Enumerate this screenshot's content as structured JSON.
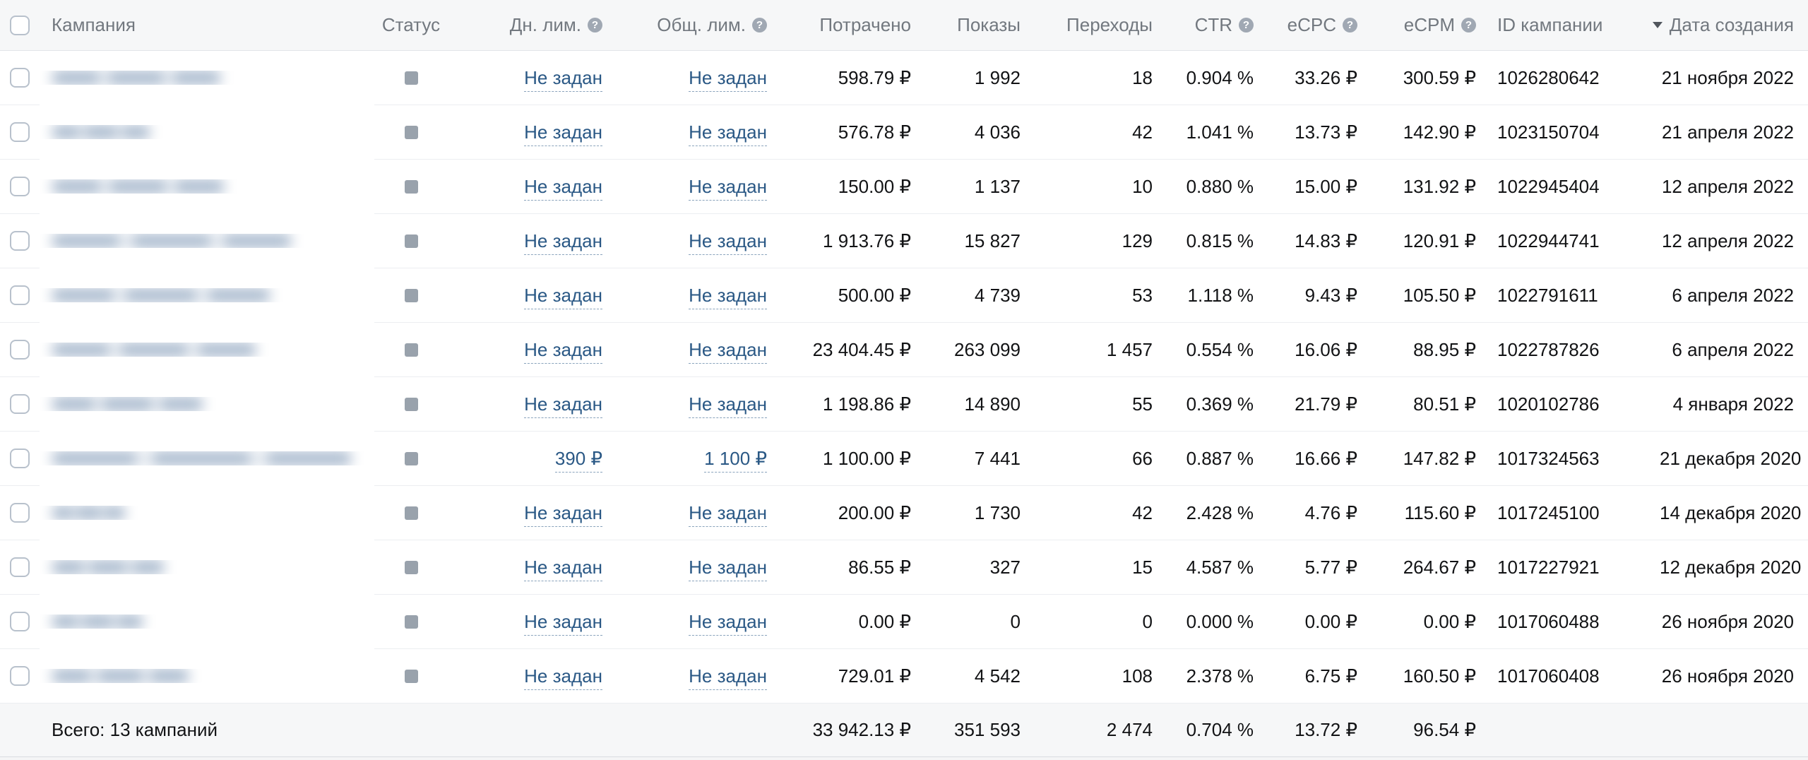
{
  "colors": {
    "link_blue": "#2a5885",
    "status_gray": "#99a2ac",
    "header_bg": "#f6f7f8",
    "footer_bg": "#f6f7f8",
    "header_text": "#72787f"
  },
  "icons": {
    "help_glyph": "?",
    "sort_direction": "desc"
  },
  "header": {
    "campaign": "Кампания",
    "status": "Статус",
    "daily_limit": "Дн. лим.",
    "total_limit": "Общ. лим.",
    "spent": "Потрачено",
    "impressions": "Показы",
    "clicks": "Переходы",
    "ctr": "CTR",
    "ecpc": "eCPC",
    "ecpm": "eCPM",
    "id": "ID кампании",
    "created": "Дата создания"
  },
  "rows": [
    {
      "name_redacted": true,
      "name_blur_width": 240,
      "status": "paused",
      "daily_limit": "Не задан",
      "total_limit": "Не задан",
      "spent": "598.79 ₽",
      "impressions": "1 992",
      "clicks": "18",
      "ctr": "0.904 %",
      "ecpc": "33.26 ₽",
      "ecpm": "300.59 ₽",
      "id": "1026280642",
      "created": "21 ноября 2022"
    },
    {
      "name_redacted": true,
      "name_blur_width": 140,
      "status": "paused",
      "daily_limit": "Не задан",
      "total_limit": "Не задан",
      "spent": "576.78 ₽",
      "impressions": "4 036",
      "clicks": "42",
      "ctr": "1.041 %",
      "ecpc": "13.73 ₽",
      "ecpm": "142.90 ₽",
      "id": "1023150704",
      "created": "21 апреля 2022"
    },
    {
      "name_redacted": true,
      "name_blur_width": 245,
      "status": "paused",
      "daily_limit": "Не задан",
      "total_limit": "Не задан",
      "spent": "150.00 ₽",
      "impressions": "1 137",
      "clicks": "10",
      "ctr": "0.880 %",
      "ecpc": "15.00 ₽",
      "ecpm": "131.92 ₽",
      "id": "1022945404",
      "created": "12 апреля 2022"
    },
    {
      "name_redacted": true,
      "name_blur_width": 340,
      "status": "paused",
      "daily_limit": "Не задан",
      "total_limit": "Не задан",
      "spent": "1 913.76 ₽",
      "impressions": "15 827",
      "clicks": "129",
      "ctr": "0.815 %",
      "ecpc": "14.83 ₽",
      "ecpm": "120.91 ₽",
      "id": "1022944741",
      "created": "12 апреля 2022"
    },
    {
      "name_redacted": true,
      "name_blur_width": 310,
      "status": "paused",
      "daily_limit": "Не задан",
      "total_limit": "Не задан",
      "spent": "500.00 ₽",
      "impressions": "4 739",
      "clicks": "53",
      "ctr": "1.118 %",
      "ecpc": "9.43 ₽",
      "ecpm": "105.50 ₽",
      "id": "1022791611",
      "created": "6 апреля 2022"
    },
    {
      "name_redacted": true,
      "name_blur_width": 290,
      "status": "paused",
      "daily_limit": "Не задан",
      "total_limit": "Не задан",
      "spent": "23 404.45 ₽",
      "impressions": "263 099",
      "clicks": "1 457",
      "ctr": "0.554 %",
      "ecpc": "16.06 ₽",
      "ecpm": "88.95 ₽",
      "id": "1022787826",
      "created": "6 апреля 2022"
    },
    {
      "name_redacted": true,
      "name_blur_width": 215,
      "status": "paused",
      "daily_limit": "Не задан",
      "total_limit": "Не задан",
      "spent": "1 198.86 ₽",
      "impressions": "14 890",
      "clicks": "55",
      "ctr": "0.369 %",
      "ecpc": "21.79 ₽",
      "ecpm": "80.51 ₽",
      "id": "1020102786",
      "created": "4 января 2022"
    },
    {
      "name_redacted": true,
      "name_blur_width": 425,
      "status": "paused",
      "daily_limit": "390 ₽",
      "total_limit": "1 100 ₽",
      "spent": "1 100.00 ₽",
      "impressions": "7 441",
      "clicks": "66",
      "ctr": "0.887 %",
      "ecpc": "16.66 ₽",
      "ecpm": "147.82 ₽",
      "id": "1017324563",
      "created": "21 декабря 2020"
    },
    {
      "name_redacted": true,
      "name_blur_width": 105,
      "status": "paused",
      "daily_limit": "Не задан",
      "total_limit": "Не задан",
      "spent": "200.00 ₽",
      "impressions": "1 730",
      "clicks": "42",
      "ctr": "2.428 %",
      "ecpc": "4.76 ₽",
      "ecpm": "115.60 ₽",
      "id": "1017245100",
      "created": "14 декабря 2020"
    },
    {
      "name_redacted": true,
      "name_blur_width": 160,
      "status": "paused",
      "daily_limit": "Не задан",
      "total_limit": "Не задан",
      "spent": "86.55 ₽",
      "impressions": "327",
      "clicks": "15",
      "ctr": "4.587 %",
      "ecpc": "5.77 ₽",
      "ecpm": "264.67 ₽",
      "id": "1017227921",
      "created": "12 декабря 2020"
    },
    {
      "name_redacted": true,
      "name_blur_width": 130,
      "status": "paused",
      "daily_limit": "Не задан",
      "total_limit": "Не задан",
      "spent": "0.00 ₽",
      "impressions": "0",
      "clicks": "0",
      "ctr": "0.000 %",
      "ecpc": "0.00 ₽",
      "ecpm": "0.00 ₽",
      "id": "1017060488",
      "created": "26 ноября 2020"
    },
    {
      "name_redacted": true,
      "name_blur_width": 195,
      "status": "paused",
      "daily_limit": "Не задан",
      "total_limit": "Не задан",
      "spent": "729.01 ₽",
      "impressions": "4 542",
      "clicks": "108",
      "ctr": "2.378 %",
      "ecpc": "6.75 ₽",
      "ecpm": "160.50 ₽",
      "id": "1017060408",
      "created": "26 ноября 2020"
    }
  ],
  "footer": {
    "total_label": "Всего: 13 кампаний",
    "spent": "33 942.13 ₽",
    "impressions": "351 593",
    "clicks": "2 474",
    "ctr": "0.704 %",
    "ecpc": "13.72 ₽",
    "ecpm": "96.54 ₽"
  }
}
